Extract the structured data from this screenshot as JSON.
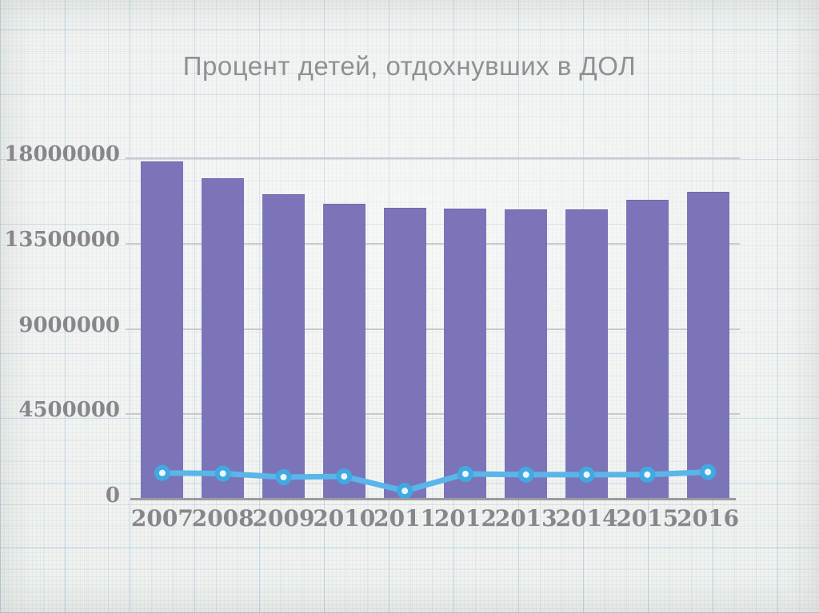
{
  "slide": {
    "title": "Процент детей, отдохнувших в ДОЛ"
  },
  "chart_data": {
    "type": "bar",
    "title": "Процент детей, отдохнувших в ДОЛ",
    "categories": [
      "2007",
      "2008",
      "2009",
      "2010",
      "2011",
      "2012",
      "2013",
      "2014",
      "2015",
      "2016"
    ],
    "series": [
      {
        "name": "bars",
        "type": "bar",
        "values": [
          17800000,
          16900000,
          16050000,
          15550000,
          15350000,
          15300000,
          15250000,
          15250000,
          15750000,
          16200000
        ]
      },
      {
        "name": "line",
        "type": "line",
        "values": [
          1400000,
          1370000,
          1180000,
          1220000,
          450000,
          1350000,
          1310000,
          1310000,
          1310000,
          1450000
        ]
      }
    ],
    "xlabel": "",
    "ylabel": "",
    "ylim": [
      0,
      18000000
    ],
    "yticks": [
      0,
      4500000,
      9000000,
      13500000,
      18000000
    ],
    "ytick_labels": [
      "0",
      "4500000",
      "9000000",
      "13500000",
      "18000000"
    ],
    "grid": "horizontal",
    "legend": "none",
    "colors": {
      "bar": "#7b74b8",
      "line": "#5ab5e8",
      "marker_ring": "#41a9e2",
      "marker_fill": "#eef6fc",
      "gridline": "#c9c9cd",
      "axis_line": "#9a9a9f",
      "label_text": "#87878b",
      "title_text": "#8f9093",
      "background": "#eff1ee"
    }
  }
}
